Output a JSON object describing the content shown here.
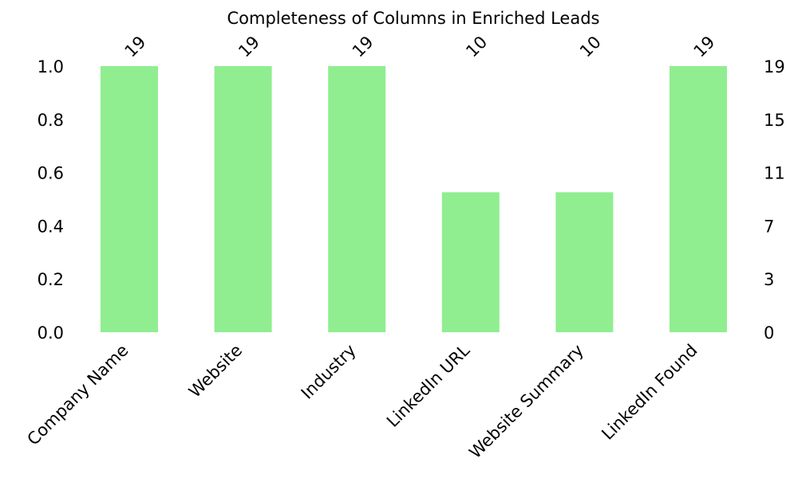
{
  "chart_data": {
    "type": "bar",
    "title": "Completeness of Columns in Enriched Leads",
    "xlabel": "",
    "ylabel": "",
    "categories": [
      "Company Name",
      "Website",
      "Industry",
      "LinkedIn URL",
      "Website Summary",
      "LinkedIn Found"
    ],
    "counts": [
      19,
      19,
      19,
      10,
      10,
      19
    ],
    "total_rows": 19,
    "values": [
      1.0,
      1.0,
      1.0,
      0.526,
      0.526,
      1.0
    ],
    "ylim": [
      0,
      1.0
    ],
    "left_ticks": [
      "0.0",
      "0.2",
      "0.4",
      "0.6",
      "0.8",
      "1.0"
    ],
    "right_ticks": [
      "0",
      "3",
      "7",
      "11",
      "15",
      "19"
    ],
    "grid": false,
    "legend": "none",
    "bar_color": "#90ee90",
    "text_color": "#000000",
    "background_color": "#ffffff"
  }
}
